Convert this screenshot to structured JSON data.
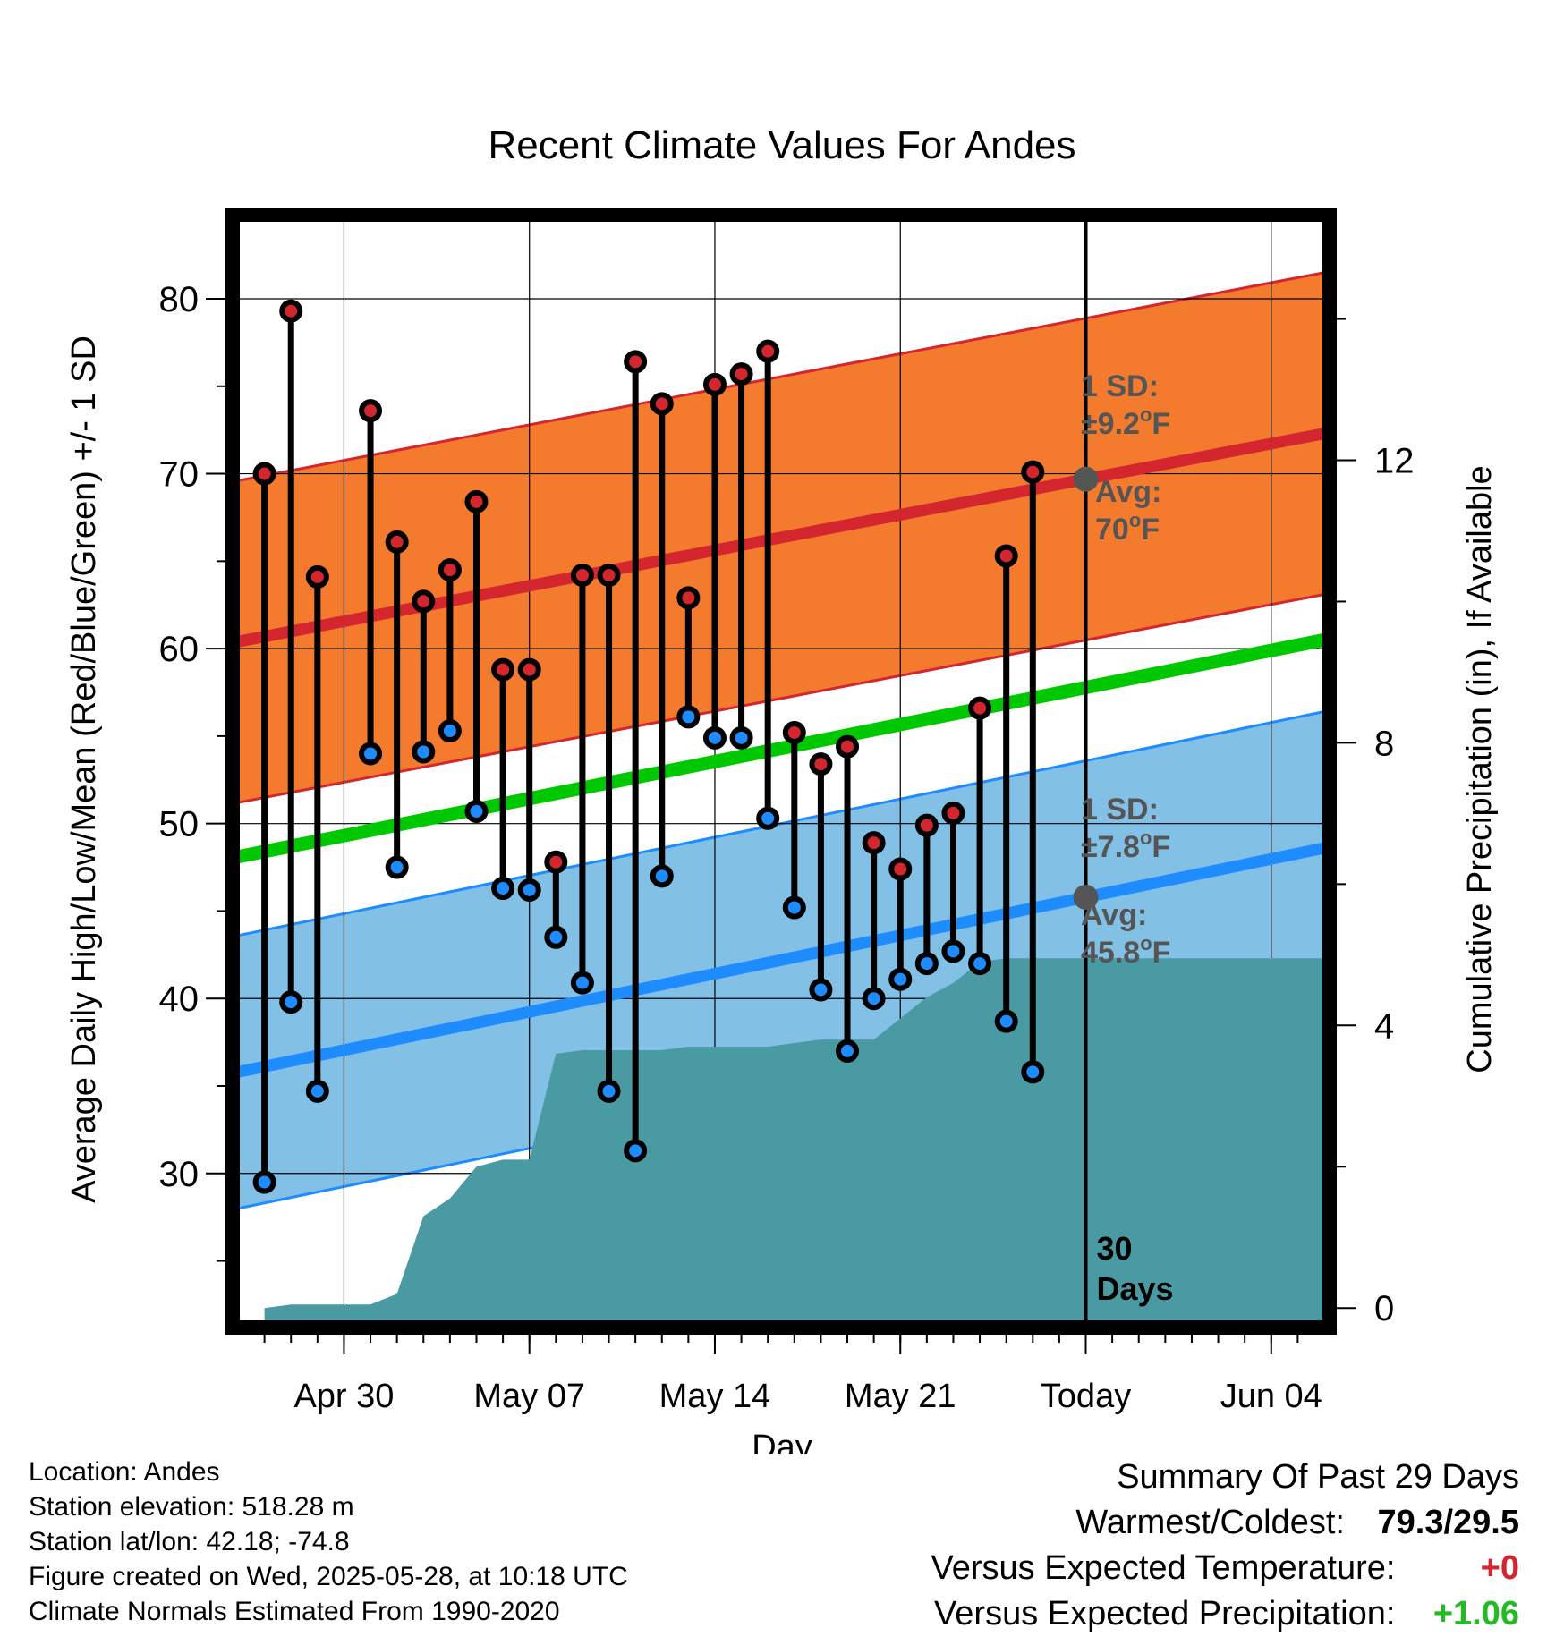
{
  "chart_data": {
    "type": "line",
    "title": "Recent Climate Values For Andes",
    "xlabel": "Day",
    "ylabel": "Average Daily High/Low/Mean (Red/Blue/Green) +/- 1 SD",
    "y2label": "Cumulative Precipitation (in), If Available",
    "ylim": [
      21.5,
      84.5
    ],
    "y_ticks": [
      30,
      40,
      50,
      60,
      70,
      80
    ],
    "y2lim": [
      -0.2,
      15.4
    ],
    "y2_ticks": [
      0,
      4,
      8,
      12
    ],
    "xlim": [
      "2025-04-26",
      "2025-06-06"
    ],
    "x_ticks": [
      {
        "date": "2025-04-30",
        "label": "Apr 30"
      },
      {
        "date": "2025-05-07",
        "label": "May 07"
      },
      {
        "date": "2025-05-14",
        "label": "May 14"
      },
      {
        "date": "2025-05-21",
        "label": "May 21"
      },
      {
        "date": "2025-05-28",
        "label": "Today"
      },
      {
        "date": "2025-06-04",
        "label": "Jun 04"
      }
    ],
    "grid": true,
    "today": "2025-05-28",
    "today_label": "30 Days",
    "dates": [
      "2025-04-27",
      "2025-04-28",
      "2025-04-29",
      "2025-04-30",
      "2025-05-01",
      "2025-05-02",
      "2025-05-03",
      "2025-05-04",
      "2025-05-05",
      "2025-05-06",
      "2025-05-07",
      "2025-05-08",
      "2025-05-09",
      "2025-05-10",
      "2025-05-11",
      "2025-05-12",
      "2025-05-13",
      "2025-05-14",
      "2025-05-15",
      "2025-05-16",
      "2025-05-17",
      "2025-05-18",
      "2025-05-19",
      "2025-05-20",
      "2025-05-21",
      "2025-05-22",
      "2025-05-23",
      "2025-05-24",
      "2025-05-25",
      "2025-05-26",
      "2025-05-27"
    ],
    "daily_high": [
      70.0,
      79.3,
      64.1,
      null,
      73.6,
      66.1,
      62.7,
      64.5,
      68.4,
      58.8,
      58.8,
      47.8,
      64.2,
      64.2,
      76.4,
      74.0,
      62.9,
      75.1,
      75.7,
      77.0,
      55.2,
      53.4,
      54.4,
      48.9,
      47.4,
      49.9,
      50.6,
      56.6,
      65.3,
      70.1,
      null
    ],
    "daily_low": [
      29.5,
      39.8,
      34.7,
      null,
      54.0,
      47.5,
      54.1,
      55.3,
      50.7,
      46.3,
      46.2,
      43.5,
      40.9,
      34.7,
      31.3,
      47.0,
      56.1,
      54.9,
      54.9,
      50.3,
      45.2,
      40.5,
      37.0,
      40.0,
      41.1,
      42.0,
      42.7,
      42.0,
      38.7,
      35.8,
      null
    ],
    "precipitation_dates": [
      "2025-04-27",
      "2025-04-28",
      "2025-04-29",
      "2025-04-30",
      "2025-05-01",
      "2025-05-02",
      "2025-05-03",
      "2025-05-04",
      "2025-05-05",
      "2025-05-06",
      "2025-05-07",
      "2025-05-08",
      "2025-05-09",
      "2025-05-10",
      "2025-05-11",
      "2025-05-12",
      "2025-05-13",
      "2025-05-14",
      "2025-05-15",
      "2025-05-16",
      "2025-05-17",
      "2025-05-18",
      "2025-05-19",
      "2025-05-20",
      "2025-05-21",
      "2025-05-22",
      "2025-05-23",
      "2025-05-24",
      "2025-05-25",
      "2025-05-26",
      "2025-05-27",
      "2025-06-06"
    ],
    "cumulative_precipitation": [
      0.0,
      0.05,
      0.05,
      0.05,
      0.05,
      0.2,
      1.3,
      1.55,
      2.0,
      2.1,
      2.1,
      3.6,
      3.65,
      3.65,
      3.65,
      3.65,
      3.7,
      3.7,
      3.7,
      3.7,
      3.75,
      3.8,
      3.8,
      3.8,
      4.1,
      4.4,
      4.6,
      4.9,
      4.95,
      4.95,
      4.95,
      4.95
    ],
    "normals_dates": [
      "2025-04-26",
      "2025-06-06"
    ],
    "normal_high": [
      60.4,
      72.3
    ],
    "normal_mean": [
      48.1,
      60.5
    ],
    "normal_low": [
      35.8,
      48.6
    ],
    "high_sd": 9.2,
    "low_sd": 7.8,
    "annotations": {
      "high_sd": [
        "1 SD:",
        "±9.2",
        "F"
      ],
      "high_avg": [
        "Avg:",
        "70",
        "F"
      ],
      "low_sd": [
        "1 SD:",
        "±7.8",
        "F"
      ],
      "low_avg": [
        "Avg:",
        "45.8",
        "F"
      ],
      "degree": "o"
    },
    "colors": {
      "high_band": "#f47b2e",
      "high_line": "#d3262e",
      "mean_line": "#00c800",
      "low_band": "#82c0e6",
      "low_line": "#1e8cff",
      "precip": "#4a9aa4",
      "annotation": "#555555",
      "high_marker": "#d3262e",
      "low_marker": "#1e8cff"
    }
  },
  "footer": {
    "location": "Location: Andes",
    "elevation": "Station elevation: 518.28 m",
    "latlon": "Station lat/lon: 42.18; -74.8",
    "created": "Figure created on Wed, 2025-05-28, at 10:18 UTC",
    "normals": "Climate Normals Estimated From 1990-2020"
  },
  "summary": {
    "title": "Summary Of Past 29 Days",
    "warmest_label": "Warmest/Coldest:",
    "warmest_value": "79.3/29.5",
    "temp_label": "Versus Expected Temperature:",
    "temp_value": "+0",
    "temp_color": "#d3262e",
    "precip_label": "Versus Expected Precipitation:",
    "precip_value": "+1.06",
    "precip_color": "#22bb22"
  }
}
